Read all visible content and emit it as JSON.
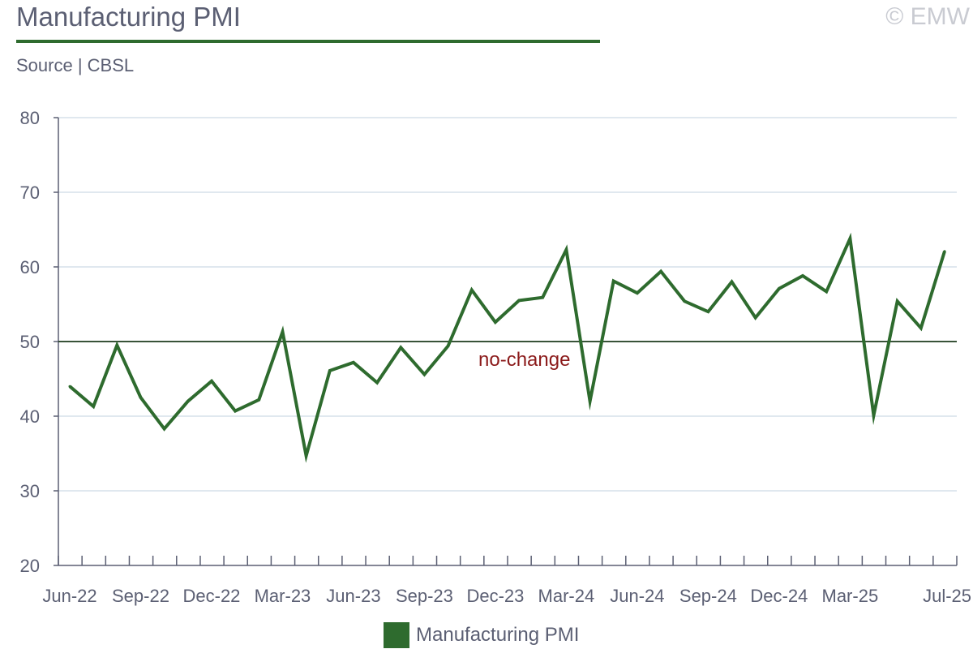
{
  "header": {
    "title": "Manufacturing PMI",
    "source": "Source | CBSL",
    "watermark": "© EMW"
  },
  "colors": {
    "series": "#2e6b2e",
    "grid": "#d6e0ea",
    "axis": "#5b5f73",
    "reference_line": "#1e3d1e",
    "annotation": "#8b1a1a"
  },
  "chart_data": {
    "type": "line",
    "title": "Manufacturing PMI",
    "xlabel": "",
    "ylabel": "",
    "ylim": [
      20,
      80
    ],
    "yticks": [
      20,
      30,
      40,
      50,
      60,
      70,
      80
    ],
    "grid": true,
    "legend": "bottom",
    "x": [
      "Jun-22",
      "Jul-22",
      "Aug-22",
      "Sep-22",
      "Oct-22",
      "Nov-22",
      "Dec-22",
      "Jan-23",
      "Feb-23",
      "Mar-23",
      "Apr-23",
      "May-23",
      "Jun-23",
      "Jul-23",
      "Aug-23",
      "Sep-23",
      "Oct-23",
      "Nov-23",
      "Dec-23",
      "Jan-24",
      "Feb-24",
      "Mar-24",
      "Apr-24",
      "May-24",
      "Jun-24",
      "Jul-24",
      "Aug-24",
      "Sep-24",
      "Oct-24",
      "Nov-24",
      "Dec-24",
      "Jan-25",
      "Feb-25",
      "Mar-25",
      "Apr-25",
      "May-25",
      "Jun-25",
      "Jul-25"
    ],
    "xtick_labels": [
      "Jun-22",
      "Sep-22",
      "Dec-22",
      "Mar-23",
      "Jun-23",
      "Sep-23",
      "Dec-23",
      "Mar-24",
      "Jun-24",
      "Sep-24",
      "Dec-24",
      "Mar-25",
      "Jul-25"
    ],
    "series": [
      {
        "name": "Manufacturing PMI",
        "values": [
          44.0,
          41.3,
          49.5,
          42.5,
          38.3,
          42.0,
          44.7,
          40.7,
          42.2,
          51.3,
          34.7,
          46.1,
          47.2,
          44.5,
          49.2,
          45.6,
          49.4,
          56.9,
          52.6,
          55.5,
          55.9,
          62.3,
          42.0,
          58.1,
          56.5,
          59.4,
          55.4,
          54.0,
          58.0,
          53.2,
          57.1,
          58.8,
          56.7,
          63.8,
          40.1,
          55.4,
          51.8,
          62.1
        ]
      }
    ],
    "reference_line": {
      "value": 50,
      "label": "no-change"
    }
  }
}
